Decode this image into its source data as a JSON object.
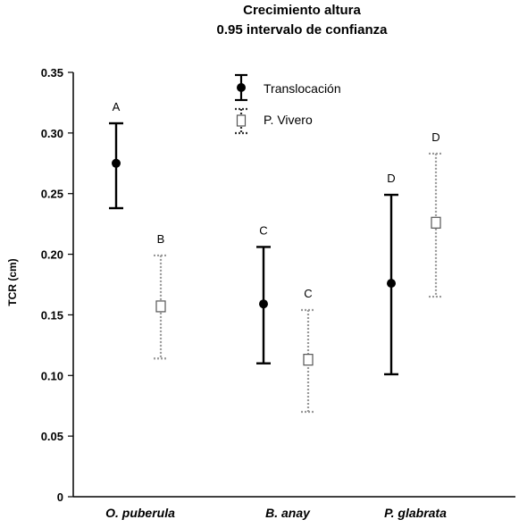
{
  "chart_data": {
    "type": "errorbar",
    "title_lines": [
      "Crecimiento altura",
      "0.95 intervalo de confianza"
    ],
    "ylabel": "TCR (cm)",
    "xlabel": "",
    "ylim": [
      0,
      0.35
    ],
    "yticks": [
      "0",
      "0.05",
      "0.10",
      "0.15",
      "0.20",
      "0.25",
      "0.30",
      "0.35"
    ],
    "categories": [
      "O. puberula",
      "B. anay",
      "P. glabrata"
    ],
    "legend_position": "top-center",
    "grid": false,
    "series": [
      {
        "name": "Translocación",
        "marker": "filled-circle",
        "line": "solid",
        "color": "#000000",
        "points": [
          {
            "category": "O. puberula",
            "mean": 0.275,
            "lower": 0.238,
            "upper": 0.308,
            "label": "A"
          },
          {
            "category": "B. anay",
            "mean": 0.159,
            "lower": 0.11,
            "upper": 0.206,
            "label": "C"
          },
          {
            "category": "P. glabrata",
            "mean": 0.176,
            "lower": 0.101,
            "upper": 0.249,
            "label": "D"
          }
        ]
      },
      {
        "name": "P. Vivero",
        "marker": "open-square",
        "line": "dotted",
        "color": "#999999",
        "points": [
          {
            "category": "O. puberula",
            "mean": 0.157,
            "lower": 0.114,
            "upper": 0.199,
            "label": "B"
          },
          {
            "category": "B. anay",
            "mean": 0.113,
            "lower": 0.07,
            "upper": 0.154,
            "label": "C"
          },
          {
            "category": "P. glabrata",
            "mean": 0.226,
            "lower": 0.165,
            "upper": 0.283,
            "label": "D"
          }
        ]
      }
    ]
  }
}
